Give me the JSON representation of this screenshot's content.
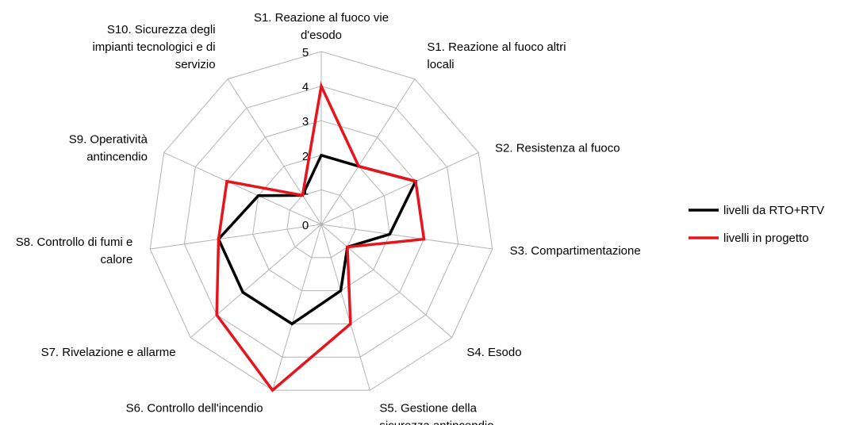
{
  "chart_data": {
    "type": "radar",
    "categories": [
      "S1. Reazione al fuoco vie d'esodo",
      "S1. Reazione al fuoco altri locali",
      "S2. Resistenza al fuoco",
      "S3. Compartimentazione",
      "S4. Esodo",
      "S5. Gestione della sicurezza antincendio",
      "S6. Controllo dell'incendio",
      "S7. Rivelazione e allarme",
      "S8. Controllo di fumi e calore",
      "S9. Operatività antincendio",
      "S10. Sicurezza degli impianti tecnologici e di servizio"
    ],
    "category_label_lines": [
      [
        "S1. Reazione al fuoco vie",
        "d'esodo"
      ],
      [
        "S1. Reazione al fuoco altri",
        "locali"
      ],
      [
        "S2. Resistenza al fuoco"
      ],
      [
        "S3. Compartimentazione"
      ],
      [
        "S4. Esodo"
      ],
      [
        "S5. Gestione della",
        "sicurezza antincendio"
      ],
      [
        "S6. Controllo dell'incendio"
      ],
      [
        "S7. Rivelazione e allarme"
      ],
      [
        "S8. Controllo di fumi e",
        "calore"
      ],
      [
        "S9. Operatività",
        "antincendio"
      ],
      [
        "S10. Sicurezza degli",
        "impianti tecnologici e di",
        "servizio"
      ]
    ],
    "r_ticks": [
      "0",
      "1",
      "2",
      "3",
      "4",
      "5"
    ],
    "rlim": [
      0,
      5
    ],
    "grid": true,
    "legend_position": "right",
    "series": [
      {
        "name": "livelli da RTO+RTV",
        "color": "#000000",
        "values": [
          2,
          2,
          3,
          2,
          1,
          2,
          3,
          3,
          3,
          2,
          1
        ]
      },
      {
        "name": "livelli in progetto",
        "color": "#e8141c",
        "values": [
          4,
          2,
          3,
          3,
          1,
          3,
          5,
          4,
          3,
          3,
          1
        ]
      }
    ]
  }
}
